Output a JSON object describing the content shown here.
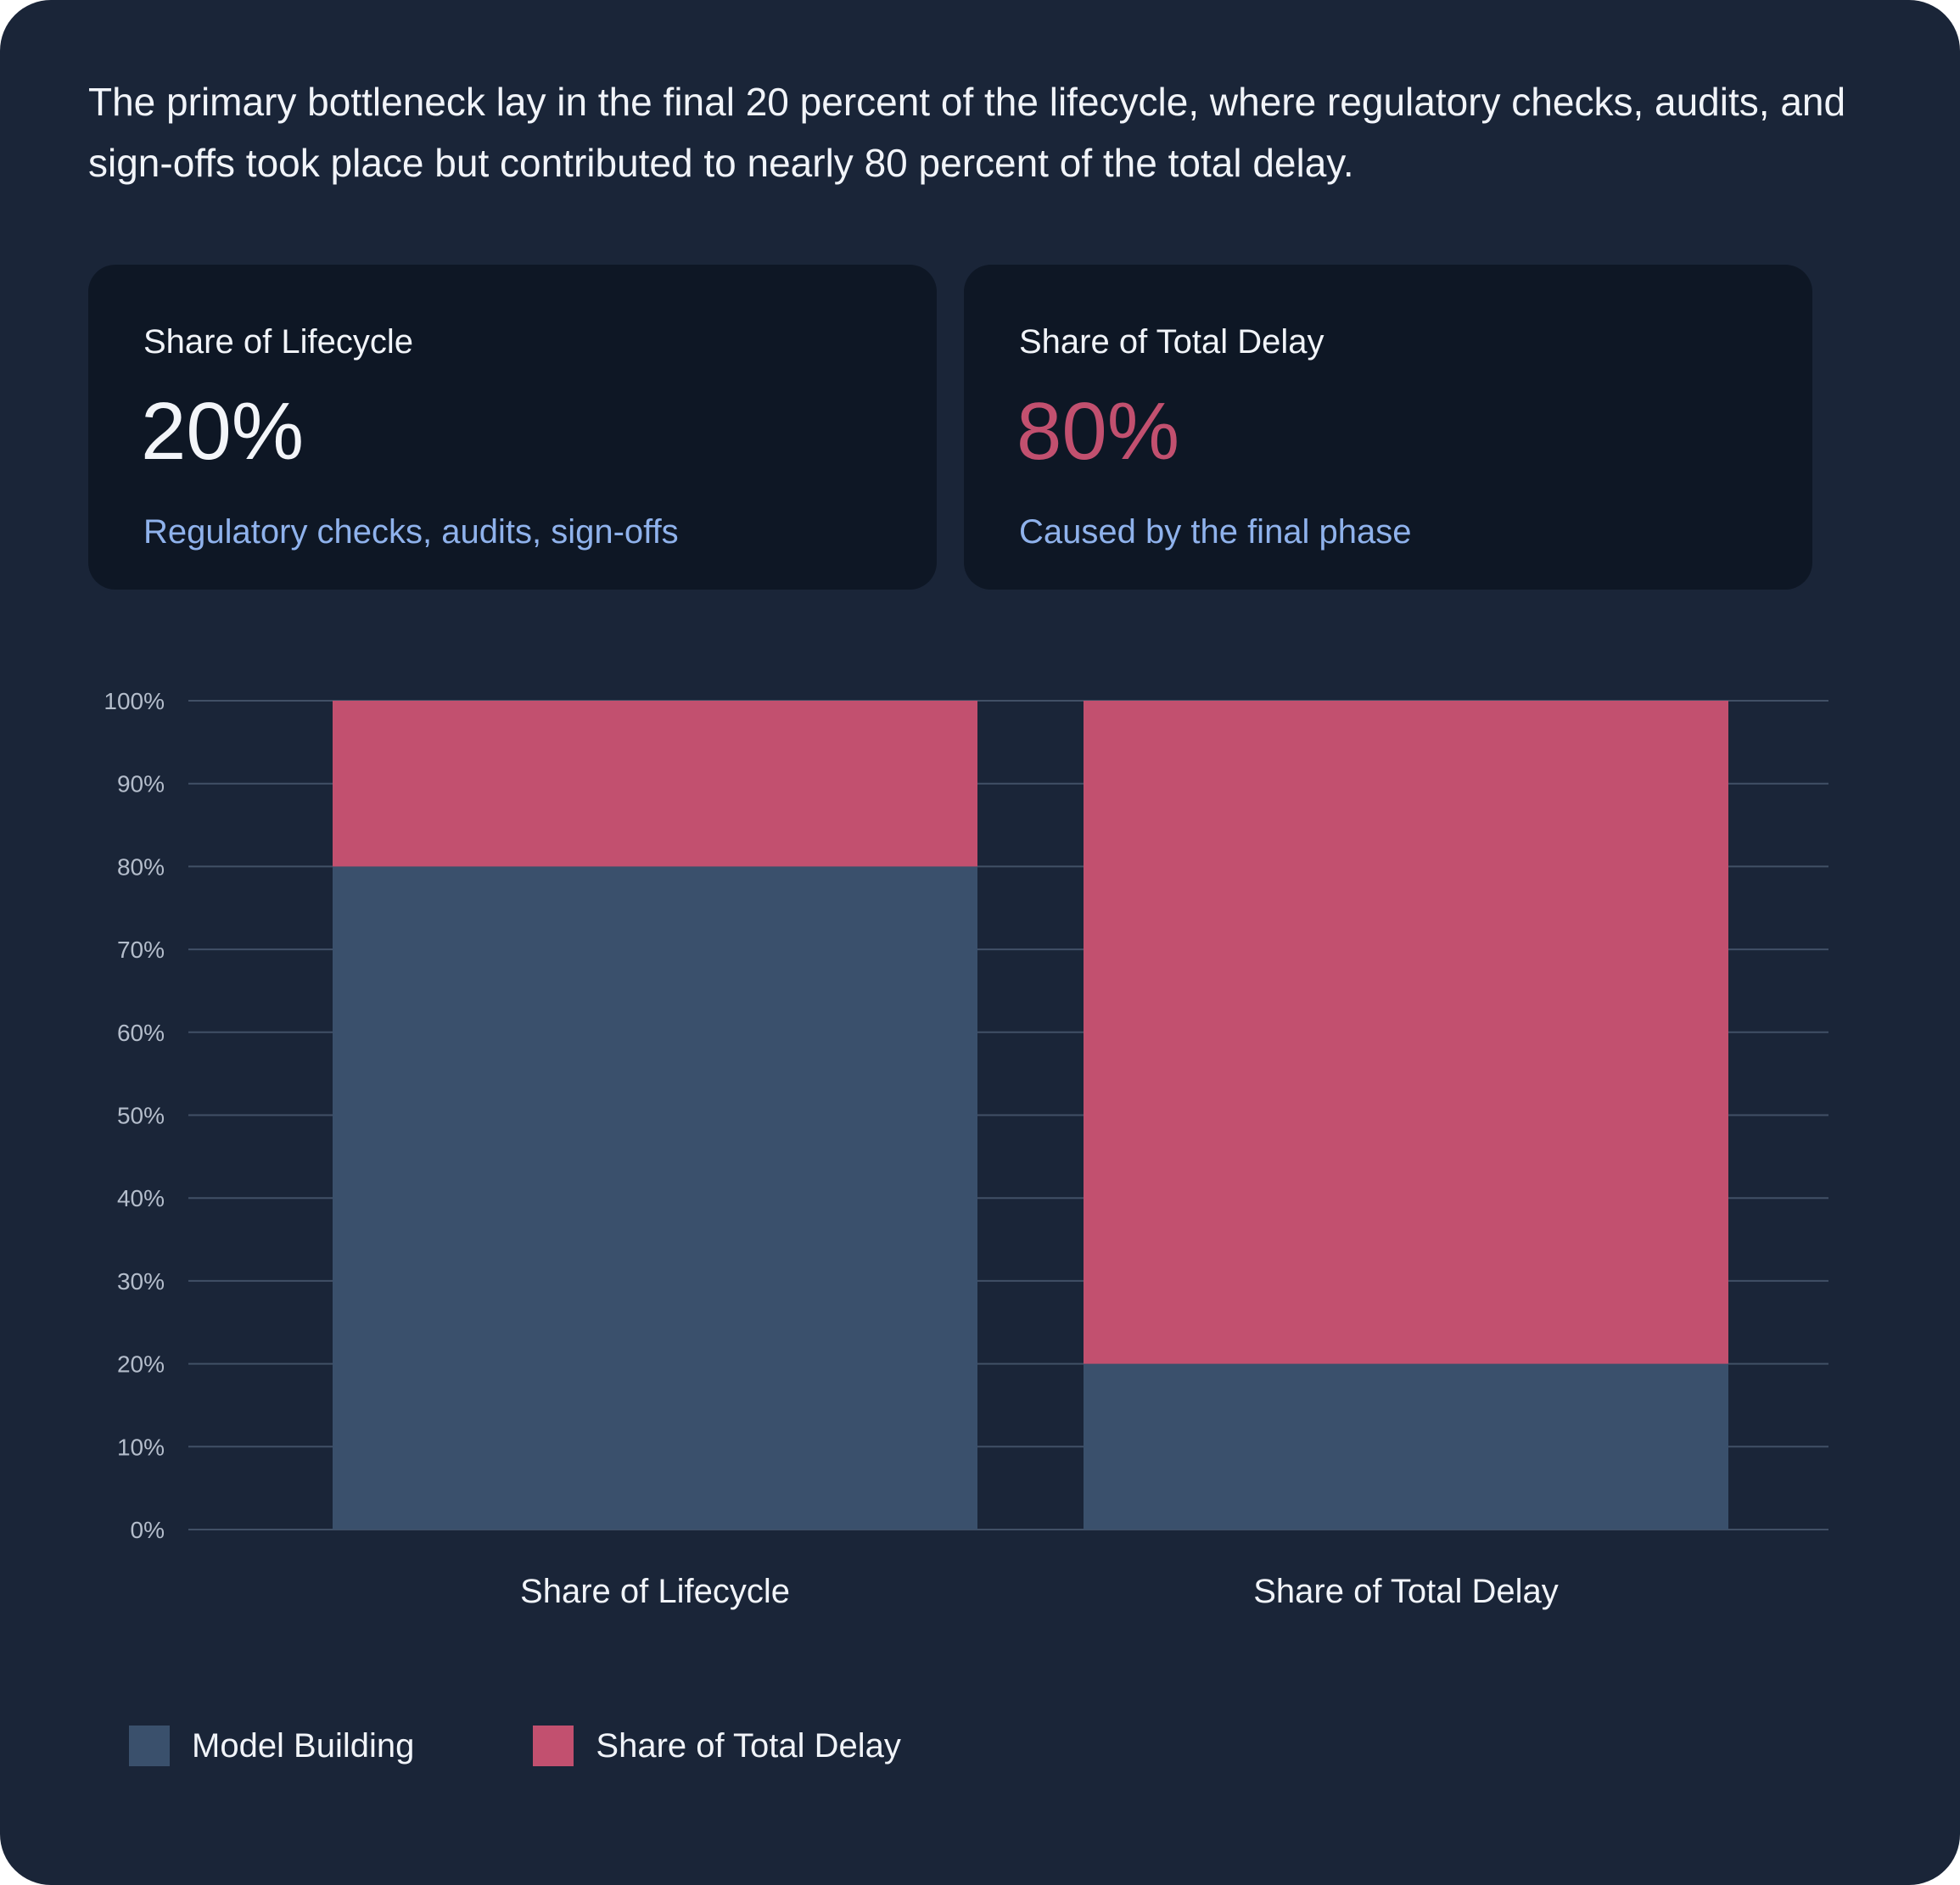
{
  "intro": "The primary bottleneck lay in the final 20 percent of the lifecycle, where regulatory checks, audits, and sign-offs took place but contributed to nearly 80 percent of the total delay.",
  "stats": [
    {
      "label": "Share of Lifecycle",
      "value": "20%",
      "note": "Regulatory checks, audits, sign-offs",
      "value_color": "#f3f5f9"
    },
    {
      "label": "Share of Total Delay",
      "value": "80%",
      "note": "Caused by the final phase",
      "value_color": "#c2506f"
    }
  ],
  "colors": {
    "note": "#8fb2ec",
    "model_building": "#3a506c",
    "delay": "#c2506f",
    "grid": "#415066",
    "tick": "#b4bdcb",
    "label": "#f1f4f9"
  },
  "chart_data": {
    "type": "bar",
    "stacked": true,
    "categories": [
      "Share of Lifecycle",
      "Share of Total Delay"
    ],
    "series": [
      {
        "name": "Model Building",
        "values": [
          80,
          20
        ]
      },
      {
        "name": "Share of Total Delay",
        "values": [
          20,
          80
        ]
      }
    ],
    "ylim": [
      0,
      100
    ],
    "yticks": [
      0,
      10,
      20,
      30,
      40,
      50,
      60,
      70,
      80,
      90,
      100
    ],
    "tick_suffix": "%",
    "grid": true,
    "legend_position": "bottom-left",
    "title": "",
    "xlabel": "",
    "ylabel": ""
  },
  "legend": [
    {
      "label": "Model Building"
    },
    {
      "label": "Share of Total Delay"
    }
  ]
}
